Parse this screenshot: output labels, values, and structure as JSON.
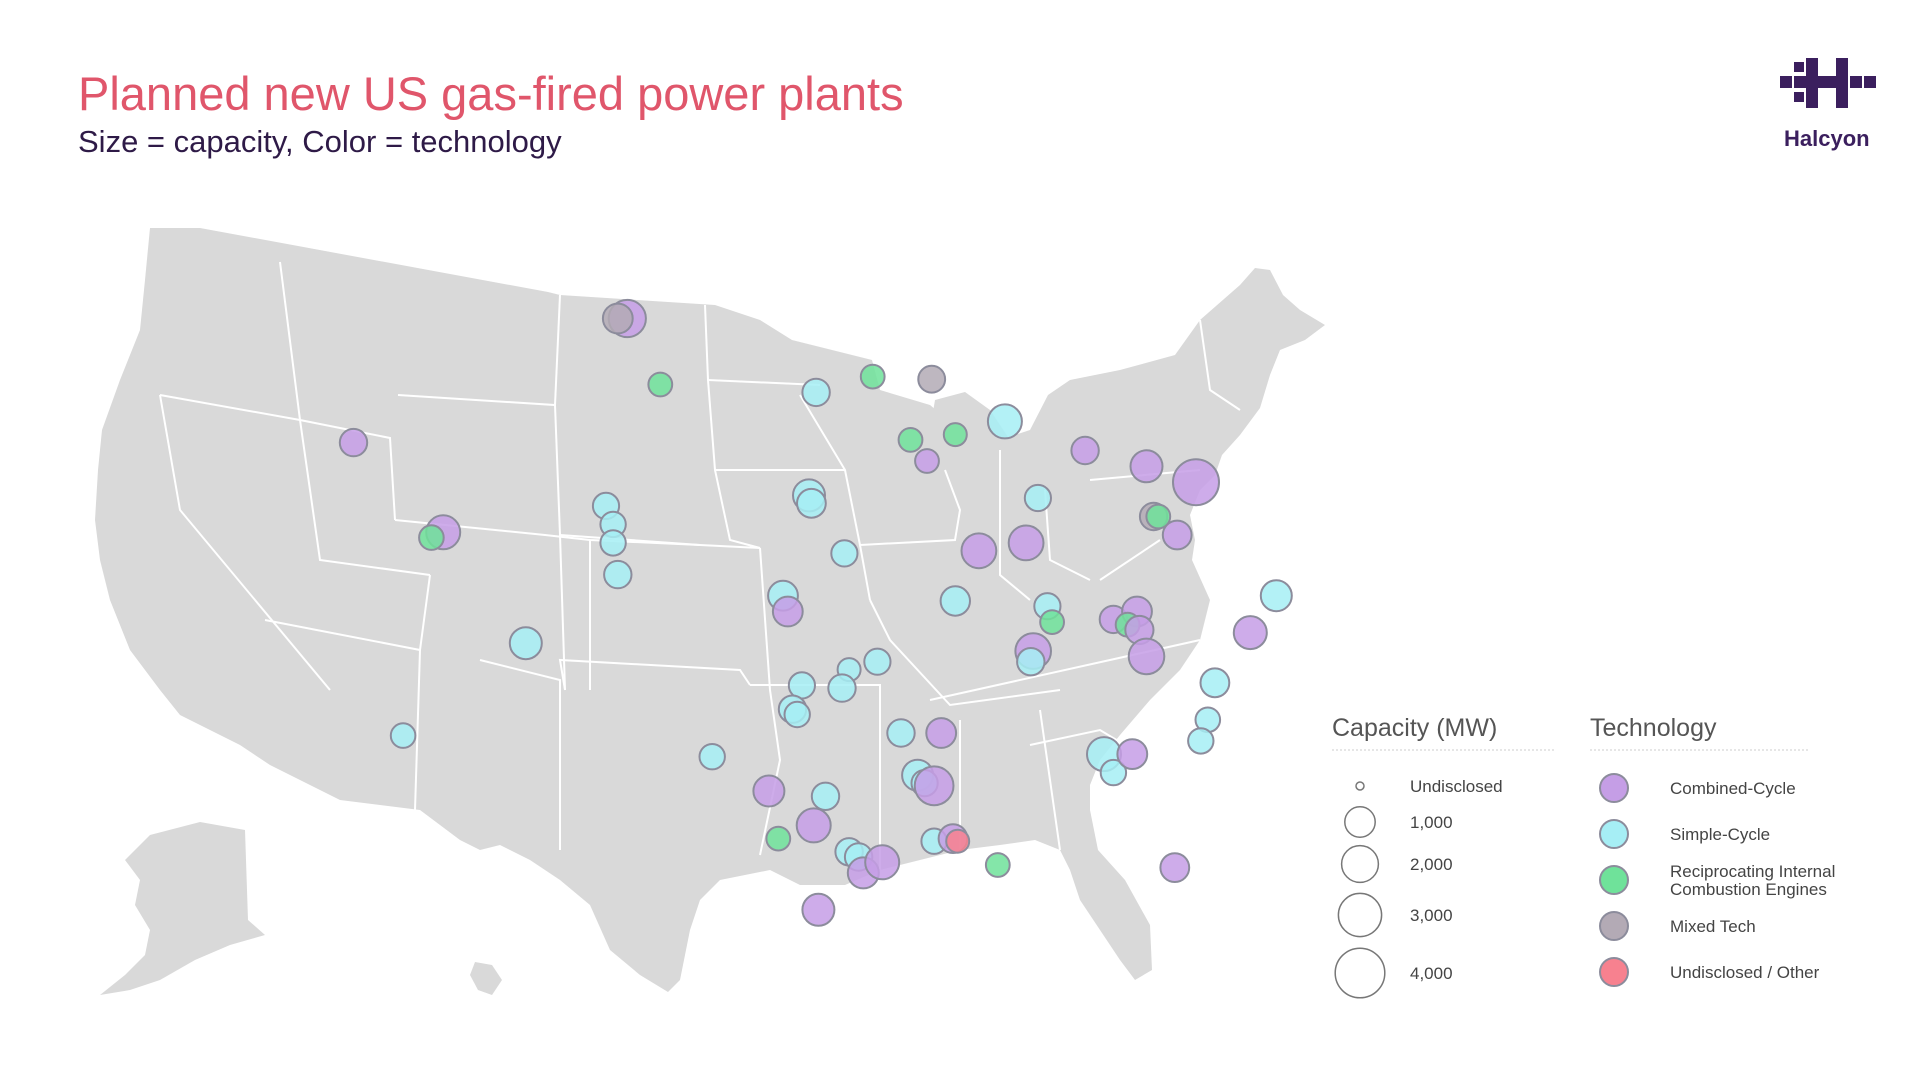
{
  "header": {
    "title": "Planned new US gas-fired power plants",
    "subtitle": "Size = capacity, Color = technology"
  },
  "logo": {
    "word": "Halcyon",
    "color": "#3b1f5e"
  },
  "legend": {
    "capacity_title": "Capacity (MW)",
    "capacity_items": [
      {
        "label": "Undisclosed",
        "mw": 0
      },
      {
        "label": "1,000",
        "mw": 1000
      },
      {
        "label": "2,000",
        "mw": 2000
      },
      {
        "label": "3,000",
        "mw": 3000
      },
      {
        "label": "4,000",
        "mw": 4000
      }
    ],
    "technology_title": "Technology",
    "technology_items": [
      {
        "key": "cc",
        "label_lines": [
          "Combined-Cycle"
        ],
        "color": "#c59ee6"
      },
      {
        "key": "sc",
        "label_lines": [
          "Simple-Cycle"
        ],
        "color": "#a6eef5"
      },
      {
        "key": "rice",
        "label_lines": [
          "Reciprocating Internal",
          "Combustion Engines"
        ],
        "color": "#6fe29a"
      },
      {
        "key": "mixed",
        "label_lines": [
          "Mixed Tech"
        ],
        "color": "#b3aab5"
      },
      {
        "key": "other",
        "label_lines": [
          "Undisclosed / Other"
        ],
        "color": "#f7818f"
      }
    ]
  },
  "colors": {
    "land": "#d9d9d9",
    "border": "#ffffff",
    "bubble_stroke": "#8c8c9c"
  },
  "plants": [
    {
      "lon": -104.2,
      "lat": 48.3,
      "tech": "cc",
      "mw": 1600
    },
    {
      "lon": -104.6,
      "lat": 48.3,
      "tech": "mixed",
      "mw": 800
    },
    {
      "lon": -115.8,
      "lat": 43.6,
      "tech": "cc",
      "mw": 600
    },
    {
      "lon": -112.0,
      "lat": 40.2,
      "tech": "cc",
      "mw": 1200
    },
    {
      "lon": -112.5,
      "lat": 40.0,
      "tech": "rice",
      "mw": 400
    },
    {
      "lon": -102.8,
      "lat": 45.8,
      "tech": "rice",
      "mw": 350
    },
    {
      "lon": -96.2,
      "lat": 45.5,
      "tech": "sc",
      "mw": 600
    },
    {
      "lon": -93.8,
      "lat": 46.1,
      "tech": "rice",
      "mw": 350
    },
    {
      "lon": -91.3,
      "lat": 46.0,
      "tech": "mixed",
      "mw": 550
    },
    {
      "lon": -105.1,
      "lat": 41.2,
      "tech": "sc",
      "mw": 500
    },
    {
      "lon": -104.8,
      "lat": 40.5,
      "tech": "sc",
      "mw": 450
    },
    {
      "lon": -104.8,
      "lat": 39.8,
      "tech": "sc",
      "mw": 450
    },
    {
      "lon": -104.6,
      "lat": 38.6,
      "tech": "sc",
      "mw": 600
    },
    {
      "lon": -108.5,
      "lat": 36.0,
      "tech": "sc",
      "mw": 1000
    },
    {
      "lon": -113.7,
      "lat": 32.5,
      "tech": "sc",
      "mw": 400
    },
    {
      "lon": -96.5,
      "lat": 41.6,
      "tech": "sc",
      "mw": 1000
    },
    {
      "lon": -96.4,
      "lat": 41.3,
      "tech": "sc",
      "mw": 700
    },
    {
      "lon": -95.0,
      "lat": 39.4,
      "tech": "sc",
      "mw": 500
    },
    {
      "lon": -97.6,
      "lat": 37.8,
      "tech": "sc",
      "mw": 800
    },
    {
      "lon": -97.4,
      "lat": 37.2,
      "tech": "cc",
      "mw": 800
    },
    {
      "lon": -92.2,
      "lat": 43.7,
      "tech": "rice",
      "mw": 350
    },
    {
      "lon": -91.5,
      "lat": 42.9,
      "tech": "cc",
      "mw": 350
    },
    {
      "lon": -90.3,
      "lat": 43.9,
      "tech": "rice",
      "mw": 300
    },
    {
      "lon": -88.2,
      "lat": 44.4,
      "tech": "sc",
      "mw": 1200
    },
    {
      "lon": -86.8,
      "lat": 41.5,
      "tech": "sc",
      "mw": 500
    },
    {
      "lon": -89.3,
      "lat": 39.5,
      "tech": "cc",
      "mw": 1300
    },
    {
      "lon": -87.3,
      "lat": 39.8,
      "tech": "cc",
      "mw": 1300
    },
    {
      "lon": -90.3,
      "lat": 37.6,
      "tech": "sc",
      "mw": 750
    },
    {
      "lon": -86.4,
      "lat": 37.4,
      "tech": "sc",
      "mw": 500
    },
    {
      "lon": -86.2,
      "lat": 36.8,
      "tech": "rice",
      "mw": 350
    },
    {
      "lon": -87.0,
      "lat": 35.7,
      "tech": "cc",
      "mw": 1400
    },
    {
      "lon": -87.1,
      "lat": 35.3,
      "tech": "sc",
      "mw": 600
    },
    {
      "lon": -83.6,
      "lat": 36.9,
      "tech": "cc",
      "mw": 600
    },
    {
      "lon": -82.6,
      "lat": 37.2,
      "tech": "cc",
      "mw": 800
    },
    {
      "lon": -83.0,
      "lat": 36.7,
      "tech": "rice",
      "mw": 350
    },
    {
      "lon": -82.5,
      "lat": 36.5,
      "tech": "cc",
      "mw": 650
    },
    {
      "lon": -82.2,
      "lat": 35.5,
      "tech": "cc",
      "mw": 1400
    },
    {
      "lon": -84.8,
      "lat": 43.3,
      "tech": "cc",
      "mw": 600
    },
    {
      "lon": -82.2,
      "lat": 42.7,
      "tech": "cc",
      "mw": 1000
    },
    {
      "lon": -80.1,
      "lat": 42.1,
      "tech": "cc",
      "mw": 2900
    },
    {
      "lon": -81.9,
      "lat": 40.8,
      "tech": "mixed",
      "mw": 600
    },
    {
      "lon": -81.7,
      "lat": 40.8,
      "tech": "rice",
      "mw": 350
    },
    {
      "lon": -80.9,
      "lat": 40.1,
      "tech": "cc",
      "mw": 700
    },
    {
      "lon": -76.7,
      "lat": 37.8,
      "tech": "sc",
      "mw": 900
    },
    {
      "lon": -77.8,
      "lat": 36.4,
      "tech": "cc",
      "mw": 1100
    },
    {
      "lon": -79.3,
      "lat": 34.5,
      "tech": "sc",
      "mw": 700
    },
    {
      "lon": -79.6,
      "lat": 33.1,
      "tech": "sc",
      "mw": 400
    },
    {
      "lon": -79.9,
      "lat": 32.3,
      "tech": "sc",
      "mw": 450
    },
    {
      "lon": -84.0,
      "lat": 31.8,
      "tech": "sc",
      "mw": 1200
    },
    {
      "lon": -83.6,
      "lat": 31.1,
      "tech": "sc",
      "mw": 450
    },
    {
      "lon": -82.8,
      "lat": 31.8,
      "tech": "cc",
      "mw": 800
    },
    {
      "lon": -81.0,
      "lat": 27.5,
      "tech": "cc",
      "mw": 700
    },
    {
      "lon": -94.8,
      "lat": 35.0,
      "tech": "sc",
      "mw": 300
    },
    {
      "lon": -93.6,
      "lat": 35.3,
      "tech": "sc",
      "mw": 500
    },
    {
      "lon": -96.8,
      "lat": 34.4,
      "tech": "sc",
      "mw": 500
    },
    {
      "lon": -95.1,
      "lat": 34.3,
      "tech": "sc",
      "mw": 600
    },
    {
      "lon": -97.2,
      "lat": 33.5,
      "tech": "sc",
      "mw": 600
    },
    {
      "lon": -97.0,
      "lat": 33.3,
      "tech": "sc",
      "mw": 450
    },
    {
      "lon": -92.6,
      "lat": 32.6,
      "tech": "sc",
      "mw": 600
    },
    {
      "lon": -90.9,
      "lat": 32.6,
      "tech": "cc",
      "mw": 800
    },
    {
      "lon": -91.9,
      "lat": 31.0,
      "tech": "sc",
      "mw": 900
    },
    {
      "lon": -91.6,
      "lat": 30.7,
      "tech": "sc",
      "mw": 500
    },
    {
      "lon": -91.2,
      "lat": 30.6,
      "tech": "cc",
      "mw": 1800
    },
    {
      "lon": -100.6,
      "lat": 31.7,
      "tech": "sc",
      "mw": 450
    },
    {
      "lon": -98.2,
      "lat": 30.4,
      "tech": "cc",
      "mw": 900
    },
    {
      "lon": -95.8,
      "lat": 30.2,
      "tech": "sc",
      "mw": 600
    },
    {
      "lon": -96.3,
      "lat": 29.1,
      "tech": "cc",
      "mw": 1200
    },
    {
      "lon": -97.8,
      "lat": 28.6,
      "tech": "rice",
      "mw": 350
    },
    {
      "lon": -94.8,
      "lat": 28.1,
      "tech": "sc",
      "mw": 600
    },
    {
      "lon": -94.4,
      "lat": 27.9,
      "tech": "sc",
      "mw": 600
    },
    {
      "lon": -94.2,
      "lat": 27.3,
      "tech": "cc",
      "mw": 900
    },
    {
      "lon": -93.4,
      "lat": 27.7,
      "tech": "cc",
      "mw": 1200
    },
    {
      "lon": -91.2,
      "lat": 28.5,
      "tech": "sc",
      "mw": 450
    },
    {
      "lon": -90.4,
      "lat": 28.6,
      "tech": "cc",
      "mw": 700
    },
    {
      "lon": -90.2,
      "lat": 28.5,
      "tech": "other",
      "mw": 300
    },
    {
      "lon": -88.5,
      "lat": 27.6,
      "tech": "rice",
      "mw": 350
    },
    {
      "lon": -96.1,
      "lat": 25.9,
      "tech": "cc",
      "mw": 1000
    }
  ]
}
